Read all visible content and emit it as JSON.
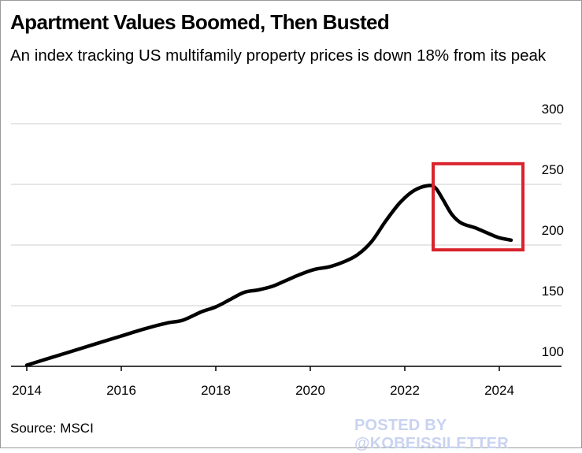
{
  "header": {
    "title": "Apartment Values Boomed, Then Busted",
    "subtitle": "An index tracking US multifamily property prices is down 18% from its peak"
  },
  "footer": {
    "source": "Source: MSCI",
    "watermark": "POSTED BY @KOBEISSILETTER"
  },
  "colors": {
    "line": "#000000",
    "grid": "#cccccc",
    "highlight_box": "#d9232d"
  },
  "chart_data": {
    "type": "line",
    "title": "Apartment Values Boomed, Then Busted",
    "subtitle": "An index tracking US multifamily property prices is down 18% from its peak",
    "xlabel": "",
    "ylabel": "",
    "xlim": [
      2014,
      2025
    ],
    "ylim": [
      100,
      300
    ],
    "x_ticks": [
      2014,
      2016,
      2018,
      2020,
      2022,
      2024
    ],
    "x_tick_labels": [
      "2014",
      "2016",
      "2018",
      "2020",
      "2022",
      "2024"
    ],
    "y_ticks": [
      100,
      150,
      200,
      250,
      300
    ],
    "y_tick_labels": [
      "100",
      "150",
      "200",
      "250",
      "300"
    ],
    "y_axis_side": "right",
    "grid": "horizontal",
    "series": [
      {
        "x": [
          2014.0,
          2014.5,
          2015.0,
          2015.5,
          2016.0,
          2016.5,
          2017.0,
          2017.3,
          2017.7,
          2018.0,
          2018.3,
          2018.6,
          2018.9,
          2019.2,
          2019.5,
          2019.8,
          2020.1,
          2020.4,
          2020.7,
          2021.0,
          2021.3,
          2021.6,
          2021.9,
          2022.2,
          2022.5,
          2022.65,
          2022.8,
          2023.0,
          2023.2,
          2023.5,
          2023.8,
          2024.0,
          2024.25
        ],
        "y": [
          101,
          107,
          113,
          119,
          125,
          131,
          136,
          138,
          145,
          149,
          155,
          161,
          163,
          166,
          171,
          176,
          180,
          182,
          186,
          192,
          203,
          220,
          235,
          245,
          249,
          247,
          238,
          225,
          218,
          214,
          209,
          206,
          204
        ]
      }
    ],
    "annotations": [
      {
        "type": "highlight-box",
        "x_range": [
          2022.6,
          2024.5
        ],
        "y_range": [
          196,
          267
        ]
      }
    ]
  }
}
